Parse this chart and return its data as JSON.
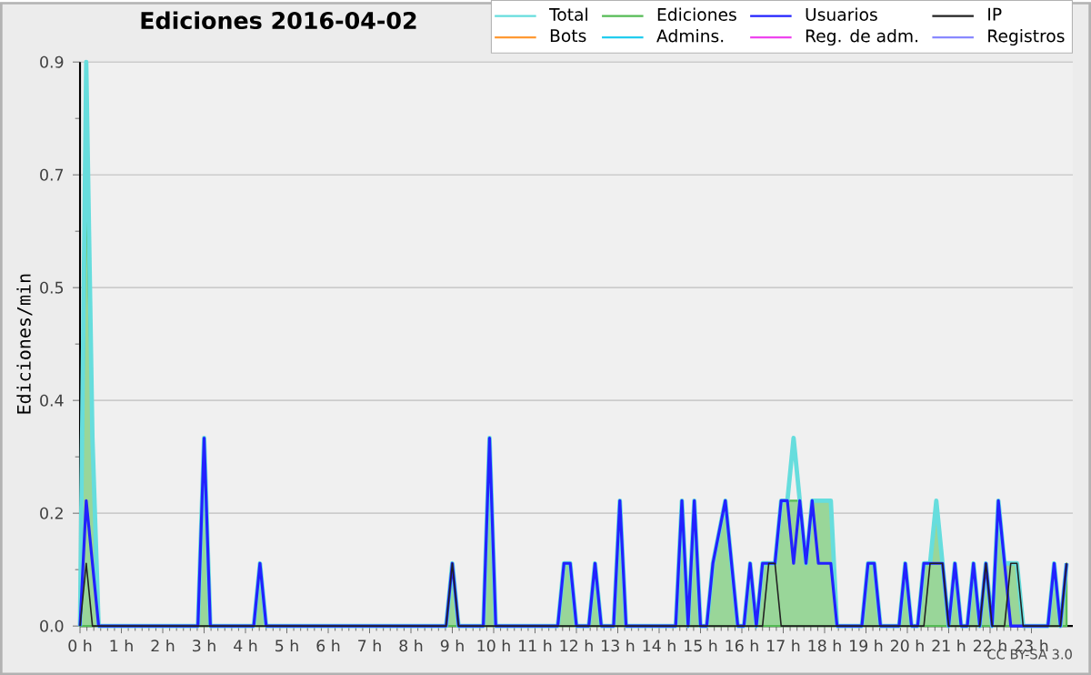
{
  "chart_data": {
    "type": "line",
    "title": "Ediciones  2016-04-02",
    "ylabel": "Ediciones/min",
    "annotations": [
      "CC BY-SA 3.0"
    ],
    "x": [
      0,
      0.15,
      0.3,
      0.45,
      2.85,
      3.0,
      3.15,
      4.2,
      4.35,
      4.5,
      8.85,
      9.0,
      9.15,
      9.75,
      9.9,
      10.05,
      11.55,
      11.7,
      11.85,
      12.0,
      12.3,
      12.45,
      12.6,
      12.9,
      13.05,
      13.2,
      14.4,
      14.55,
      14.7,
      14.85,
      15.0,
      15.15,
      15.3,
      15.6,
      15.9,
      16.05,
      16.2,
      16.35,
      16.5,
      16.65,
      16.8,
      16.95,
      17.1,
      17.25,
      17.4,
      17.55,
      17.7,
      17.85,
      18.0,
      18.15,
      18.3,
      18.9,
      19.05,
      19.2,
      19.35,
      19.8,
      19.95,
      20.1,
      20.25,
      20.4,
      20.55,
      20.7,
      20.85,
      21.0,
      21.15,
      21.3,
      21.45,
      21.6,
      21.75,
      21.9,
      22.05,
      22.2,
      22.35,
      22.5,
      22.65,
      22.8,
      23.4,
      23.55,
      23.7,
      23.85
    ],
    "series": [
      {
        "name": "Total",
        "color": "#66dddd",
        "values": [
          0,
          0.9,
          0.3,
          0,
          0,
          0.3,
          0,
          0,
          0.1,
          0,
          0,
          0.1,
          0,
          0,
          0.3,
          0,
          0,
          0.1,
          0.1,
          0,
          0,
          0.1,
          0,
          0,
          0.2,
          0,
          0,
          0.2,
          0,
          0.2,
          0,
          0,
          0.1,
          0.2,
          0,
          0,
          0.1,
          0,
          0.1,
          0.1,
          0.1,
          0.2,
          0.2,
          0.3,
          0.2,
          0.1,
          0.2,
          0.2,
          0.2,
          0.2,
          0,
          0,
          0.1,
          0.1,
          0,
          0,
          0.1,
          0,
          0,
          0.1,
          0.1,
          0.2,
          0.1,
          0,
          0.1,
          0,
          0,
          0.1,
          0,
          0.1,
          0,
          0.2,
          0.1,
          0.1,
          0.1,
          0,
          0,
          0.1,
          0,
          0.1
        ]
      },
      {
        "name": "Ediciones",
        "type": "area",
        "color": "#55bb55",
        "values": [
          0,
          0.7,
          0.3,
          0,
          0,
          0.3,
          0,
          0,
          0.1,
          0,
          0,
          0.1,
          0,
          0,
          0.3,
          0,
          0,
          0.1,
          0.1,
          0,
          0,
          0.1,
          0,
          0,
          0.2,
          0,
          0,
          0.2,
          0,
          0.2,
          0,
          0,
          0.1,
          0.2,
          0,
          0,
          0.1,
          0,
          0.1,
          0.1,
          0.1,
          0.2,
          0.2,
          0.2,
          0.2,
          0.1,
          0.2,
          0.2,
          0.2,
          0.2,
          0,
          0,
          0.1,
          0.1,
          0,
          0,
          0.1,
          0,
          0,
          0.1,
          0.1,
          0.2,
          0.1,
          0,
          0.1,
          0,
          0,
          0.1,
          0,
          0.1,
          0,
          0.2,
          0.1,
          0.1,
          0.1,
          0,
          0,
          0.1,
          0,
          0.1
        ]
      },
      {
        "name": "Usuarios",
        "color": "#2222ff",
        "values": [
          0,
          0.2,
          0.1,
          0,
          0,
          0.3,
          0,
          0,
          0.1,
          0,
          0,
          0.1,
          0,
          0,
          0.3,
          0,
          0,
          0.1,
          0.1,
          0,
          0,
          0.1,
          0,
          0,
          0.2,
          0,
          0,
          0.2,
          0,
          0.2,
          0,
          0,
          0.1,
          0.2,
          0,
          0,
          0.1,
          0,
          0.1,
          0.1,
          0.1,
          0.2,
          0.2,
          0.1,
          0.2,
          0.1,
          0.2,
          0.1,
          0.1,
          0.1,
          0,
          0,
          0.1,
          0.1,
          0,
          0,
          0.1,
          0,
          0,
          0.1,
          0.1,
          0.1,
          0.1,
          0,
          0.1,
          0,
          0,
          0.1,
          0,
          0.1,
          0,
          0.2,
          0.1,
          0,
          0,
          0,
          0,
          0.1,
          0,
          0.1
        ]
      },
      {
        "name": "IP",
        "color": "#222222",
        "values": [
          0,
          0.1,
          0,
          0,
          0,
          0,
          0,
          0,
          0,
          0,
          0,
          0.1,
          0,
          0,
          0,
          0,
          0,
          0,
          0,
          0,
          0,
          0,
          0,
          0,
          0,
          0,
          0,
          0,
          0,
          0,
          0,
          0,
          0,
          0,
          0,
          0,
          0,
          0,
          0,
          0.1,
          0.1,
          0,
          0,
          0,
          0,
          0,
          0,
          0,
          0,
          0,
          0,
          0,
          0,
          0,
          0,
          0,
          0,
          0,
          0,
          0,
          0.1,
          0.1,
          0.1,
          0,
          0,
          0,
          0,
          0,
          0,
          0.1,
          0,
          0,
          0,
          0.1,
          0.1,
          0,
          0,
          0,
          0,
          0.1
        ]
      },
      {
        "name": "Bots",
        "color": "#ff9933",
        "values": [
          null,
          null,
          null,
          null,
          null,
          null,
          null,
          null,
          null,
          null,
          null,
          null,
          null,
          null,
          null,
          null,
          null,
          null,
          null,
          null,
          null,
          null,
          null,
          null,
          null,
          null,
          null,
          null,
          null,
          null,
          null,
          null,
          null,
          null,
          null,
          null,
          null,
          null,
          null,
          null,
          null,
          null,
          null,
          null,
          null,
          null,
          null,
          null,
          null,
          null,
          null,
          null,
          null,
          null,
          null,
          null,
          null,
          null,
          null,
          null,
          null,
          null,
          null,
          null,
          null,
          null,
          null,
          null,
          null,
          null,
          null,
          null,
          null,
          null,
          null,
          null,
          null,
          null,
          null,
          null
        ]
      },
      {
        "name": "Admins.",
        "color": "#22ccee",
        "values": [
          null,
          null,
          null,
          null,
          null,
          null,
          null,
          null,
          null,
          null,
          null,
          null,
          null,
          null,
          null,
          null,
          null,
          null,
          null,
          null,
          null,
          null,
          null,
          null,
          null,
          null,
          null,
          null,
          null,
          null,
          null,
          null,
          null,
          null,
          null,
          null,
          null,
          null,
          null,
          null,
          null,
          null,
          null,
          null,
          null,
          null,
          null,
          null,
          null,
          null,
          null,
          null,
          null,
          null,
          null,
          null,
          null,
          null,
          null,
          null,
          null,
          null,
          null,
          null,
          null,
          null,
          null,
          null,
          null,
          null,
          null,
          null,
          null,
          null,
          null,
          null,
          null,
          null,
          null,
          null
        ]
      },
      {
        "name": "Reg. de adm.",
        "color": "#ee44ee",
        "values": [
          null,
          null,
          null,
          null,
          null,
          null,
          null,
          null,
          null,
          null,
          null,
          null,
          null,
          null,
          null,
          null,
          null,
          null,
          null,
          null,
          null,
          null,
          null,
          null,
          null,
          null,
          null,
          null,
          null,
          null,
          null,
          null,
          null,
          null,
          null,
          null,
          null,
          null,
          null,
          null,
          null,
          null,
          null,
          null,
          null,
          null,
          null,
          null,
          null,
          null,
          null,
          null,
          null,
          null,
          null,
          null,
          null,
          null,
          null,
          null,
          null,
          null,
          null,
          null,
          null,
          null,
          null,
          null,
          null,
          null,
          null,
          null,
          null,
          null,
          null,
          null,
          null,
          null,
          null,
          null
        ]
      },
      {
        "name": "Registros",
        "color": "#8888ff",
        "values": [
          null,
          null,
          null,
          null,
          null,
          null,
          null,
          null,
          null,
          null,
          null,
          null,
          null,
          null,
          null,
          null,
          null,
          null,
          null,
          null,
          null,
          null,
          null,
          null,
          null,
          null,
          null,
          null,
          null,
          null,
          null,
          null,
          null,
          null,
          null,
          null,
          null,
          null,
          null,
          null,
          null,
          null,
          null,
          null,
          null,
          null,
          null,
          null,
          null,
          null,
          null,
          null,
          null,
          null,
          null,
          null,
          null,
          null,
          null,
          null,
          null,
          null,
          null,
          null,
          null,
          null,
          null,
          null,
          null,
          null,
          null,
          null,
          null,
          null,
          null,
          null,
          null,
          null,
          null,
          null
        ]
      }
    ],
    "xlim": [
      0,
      24
    ],
    "xticks": [
      {
        "value": 0,
        "label": "0 h"
      },
      {
        "value": 1,
        "label": "1 h"
      },
      {
        "value": 2,
        "label": "2 h"
      },
      {
        "value": 3,
        "label": "3 h"
      },
      {
        "value": 4,
        "label": "4 h"
      },
      {
        "value": 5,
        "label": "5 h"
      },
      {
        "value": 6,
        "label": "6 h"
      },
      {
        "value": 7,
        "label": "7 h"
      },
      {
        "value": 8,
        "label": "8 h"
      },
      {
        "value": 9,
        "label": "9 h"
      },
      {
        "value": 10,
        "label": "10 h"
      },
      {
        "value": 11,
        "label": "11 h"
      },
      {
        "value": 12,
        "label": "12 h"
      },
      {
        "value": 13,
        "label": "13 h"
      },
      {
        "value": 14,
        "label": "14 h"
      },
      {
        "value": 15,
        "label": "15 h"
      },
      {
        "value": 16,
        "label": "16 h"
      },
      {
        "value": 17,
        "label": "17 h"
      },
      {
        "value": 18,
        "label": "18 h"
      },
      {
        "value": 19,
        "label": "19 h"
      },
      {
        "value": 20,
        "label": "20 h"
      },
      {
        "value": 21,
        "label": "21 h"
      },
      {
        "value": 22,
        "label": "22 h"
      },
      {
        "value": 23,
        "label": "23 h"
      }
    ],
    "ylim": [
      0,
      0.9
    ],
    "yticks": [
      {
        "value": 0,
        "label": "0.0"
      },
      {
        "value": 0.18,
        "label": "0.2"
      },
      {
        "value": 0.36,
        "label": "0.4"
      },
      {
        "value": 0.54,
        "label": "0.5"
      },
      {
        "value": 0.72,
        "label": "0.7"
      },
      {
        "value": 0.9,
        "label": "0.9"
      }
    ],
    "grid": "y",
    "legend": "top right",
    "marker": "none",
    "line_style": "solid"
  }
}
